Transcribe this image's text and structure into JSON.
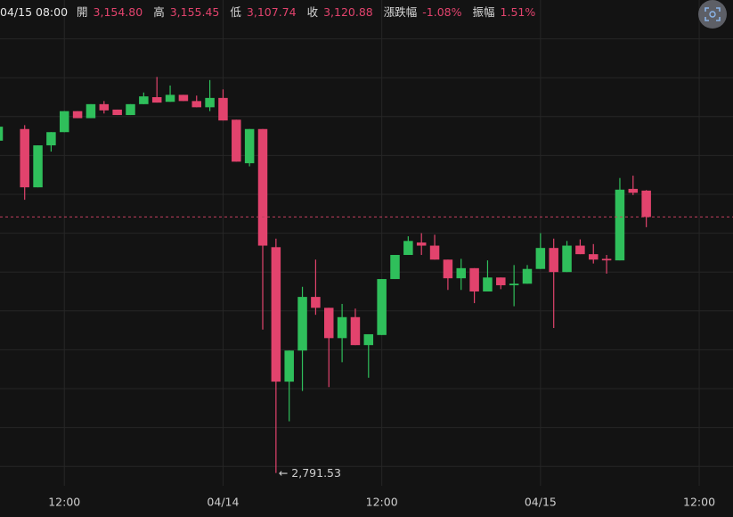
{
  "header": {
    "time": "04/15 08:00",
    "items": [
      {
        "label": "開",
        "value": "3,154.80"
      },
      {
        "label": "高",
        "value": "3,155.45"
      },
      {
        "label": "低",
        "value": "3,107.74"
      },
      {
        "label": "收",
        "value": "3,120.88"
      },
      {
        "label": "漲跌幅",
        "value": "-1.08%"
      },
      {
        "label": "振幅",
        "value": "1.51%"
      }
    ]
  },
  "chart_data": {
    "type": "candlestick",
    "categories": [
      null,
      null,
      null,
      null,
      null,
      "12:00",
      null,
      null,
      null,
      null,
      null,
      null,
      null,
      null,
      null,
      null,
      null,
      "04/14",
      null,
      null,
      null,
      null,
      null,
      null,
      null,
      null,
      null,
      null,
      null,
      "12:00",
      null,
      null,
      null,
      null,
      null,
      null,
      null,
      null,
      null,
      null,
      null,
      "04/15",
      null,
      null,
      null,
      null,
      null,
      null,
      null,
      null,
      null,
      null,
      null,
      "12:00"
    ],
    "open": [
      3219,
      null,
      3234,
      3159,
      3213,
      3230,
      3257,
      3248,
      3266,
      3259,
      3252,
      3266,
      3275,
      3269,
      3278,
      3270,
      3262,
      3274,
      3246,
      3190,
      3234,
      3082,
      2909,
      2949,
      3018,
      3004,
      2965,
      2992,
      2956,
      2969,
      3041,
      3072,
      3088,
      3084,
      3066,
      3042,
      3055,
      3025,
      3043,
      3033,
      3035,
      3054,
      3081,
      3050,
      3084,
      3073,
      3067,
      3065,
      3157,
      3154.8,
      null,
      null,
      null,
      null
    ],
    "high": [
      3237,
      null,
      3239,
      3213,
      3230,
      3257,
      3257,
      3266,
      3270,
      3259,
      3266,
      3281,
      3301,
      3290,
      3278,
      3277,
      3297,
      3285,
      3246,
      3234,
      3234,
      3093,
      2949,
      3031,
      3066,
      3004,
      3009,
      3003,
      2970,
      3041,
      3072,
      3096,
      3100,
      3098,
      3066,
      3067,
      3055,
      3065,
      3043,
      3059,
      3059,
      3100,
      3093,
      3090,
      3092,
      3086,
      3072,
      3171,
      3174,
      3155.45,
      null,
      null,
      null,
      null
    ],
    "low": [
      3219,
      null,
      3143,
      3159,
      3205,
      3230,
      3248,
      3248,
      3254,
      3252,
      3252,
      3266,
      3268,
      3269,
      3270,
      3262,
      3257,
      3245,
      3192,
      3186,
      2976,
      2791.53,
      2858,
      2897,
      2995,
      2902,
      2934,
      2956,
      2914,
      2969,
      3041,
      3072,
      3072,
      3066,
      3027,
      3027,
      3010,
      3025,
      3028,
      3006,
      3035,
      3054,
      2978,
      3050,
      3073,
      3061,
      3048,
      3065,
      3149,
      3107.74,
      null,
      null,
      null,
      null
    ],
    "close": [
      3237,
      null,
      3159,
      3213,
      3230,
      3257,
      3248,
      3266,
      3258,
      3252,
      3266,
      3276,
      3268,
      3278,
      3270,
      3262,
      3274,
      3245,
      3192,
      3234,
      3084,
      2909,
      2949,
      3018,
      3004,
      2965,
      2992,
      2956,
      2970,
      3041,
      3072,
      3090,
      3084,
      3066,
      3042,
      3055,
      3025,
      3043,
      3033,
      3035,
      3054,
      3081,
      3050,
      3084,
      3073,
      3066,
      3065,
      3156,
      3152,
      3120.88,
      null,
      null,
      null,
      null
    ],
    "low_annotation": "← 2,791.53",
    "up_color": "#2fbf5b",
    "down_color": "#e2436d",
    "ylim": [
      2775,
      3400
    ],
    "y_grid": [
      2800,
      2850,
      2900,
      2950,
      3000,
      3050,
      3100,
      3150,
      3200,
      3250,
      3300,
      3350
    ],
    "grid": true
  }
}
